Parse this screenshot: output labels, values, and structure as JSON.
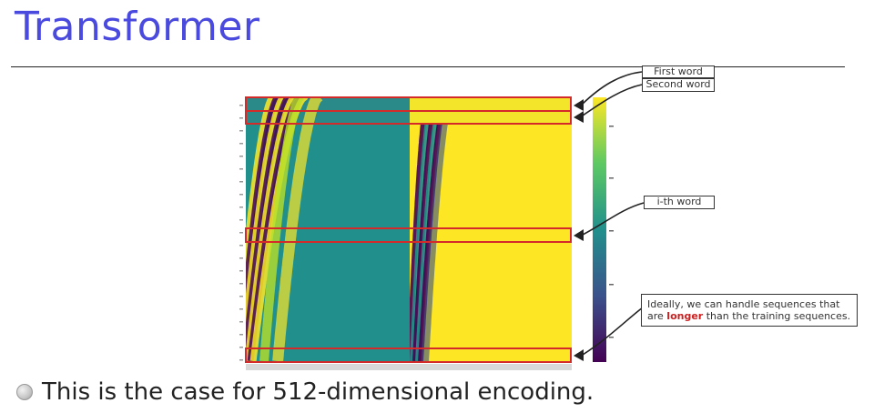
{
  "slide": {
    "title": "Transformer",
    "bullet": "This is the case for 512-dimensional encoding."
  },
  "callouts": {
    "first_word": "First word",
    "second_word": "Second word",
    "ith_word": "i-th word",
    "note_before": "Ideally, we can handle sequences that are ",
    "note_highlight": "longer",
    "note_after": " than the training sequences."
  },
  "colors": {
    "title": "#4a4adf",
    "highlight_box": "#d42a2a",
    "viridis_low": "#440154",
    "viridis_mid": "#21908c",
    "viridis_high": "#fde725"
  },
  "heatmap": {
    "encoding_dims": 512,
    "highlighted_rows": [
      "first-word",
      "second-word",
      "i-th-word",
      "last-word"
    ]
  }
}
